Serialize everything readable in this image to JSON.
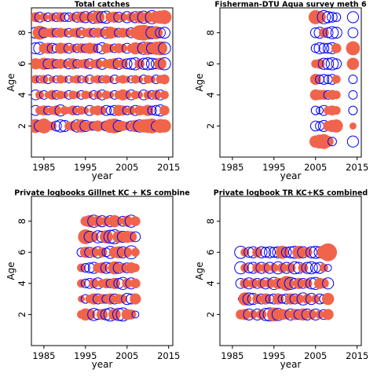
{
  "chart_data": [
    {
      "type": "scatter",
      "title": "Total catches",
      "xlabel": "year",
      "ylabel": "Age",
      "xlim": [
        1982,
        2016
      ],
      "ylim": [
        0,
        9.6
      ],
      "xticks": [
        1985,
        1995,
        2005,
        2015
      ],
      "yticks": [
        2,
        4,
        6,
        8
      ],
      "residual_colors": {
        "positive": "#f0644b",
        "negative": "#0000ff"
      },
      "years": [
        1983,
        1984,
        1985,
        1986,
        1987,
        1988,
        1989,
        1990,
        1991,
        1992,
        1993,
        1994,
        1995,
        1996,
        1997,
        1998,
        1999,
        2000,
        2001,
        2002,
        2003,
        2004,
        2005,
        2006,
        2007,
        2008,
        2009,
        2010,
        2011,
        2012,
        2013,
        2014
      ],
      "ages": [
        2,
        3,
        4,
        5,
        6,
        7,
        8,
        9
      ],
      "residuals": [
        [
          0.8,
          -0.5,
          0.9,
          0.4,
          0.3,
          -0.4,
          -0.6,
          -0.5,
          0.3,
          0.4,
          -0.6,
          0.7,
          -0.5,
          0.4,
          -0.3,
          0.5,
          0.3,
          -0.4,
          0.8,
          0.9,
          -0.5,
          0.4,
          0.3,
          -0.4,
          0.6,
          -0.6,
          0.7,
          0.8,
          0.9,
          -0.4,
          0.8,
          0.7
        ],
        [
          -0.4,
          0.3,
          0.4,
          -0.3,
          0.3,
          0.4,
          -0.5,
          0.3,
          0.2,
          0.4,
          -0.3,
          0.3,
          0.2,
          -0.4,
          0.3,
          0.4,
          0.3,
          -0.4,
          -0.3,
          -0.4,
          0.5,
          0.4,
          -0.3,
          0.3,
          -0.4,
          0.4,
          0.3,
          0.5,
          -0.3,
          -0.4,
          -0.5,
          0.4
        ],
        [
          -0.4,
          0.3,
          -0.3,
          0.2,
          0.4,
          -0.3,
          0.3,
          0.2,
          -0.3,
          0.3,
          0.2,
          -0.3,
          0.3,
          0.2,
          -0.3,
          0.3,
          -0.4,
          0.3,
          0.2,
          -0.3,
          0.3,
          0.5,
          0.3,
          -0.4,
          0.3,
          0.2,
          -0.4,
          0.3,
          -0.3,
          0.4,
          -0.4,
          0.3
        ],
        [
          0.3,
          -0.2,
          0.3,
          -0.3,
          0.2,
          -0.2,
          0.3,
          0.2,
          -0.2,
          0.2,
          0.3,
          -0.2,
          0.2,
          -0.3,
          0.2,
          0.3,
          -0.2,
          0.3,
          0.2,
          -0.3,
          0.2,
          0.3,
          0.2,
          -0.2,
          0.3,
          0.2,
          -0.3,
          0.3,
          0.2,
          -0.3,
          0.3,
          0.4
        ],
        [
          0.5,
          0.4,
          0.6,
          -0.4,
          0.5,
          -0.3,
          0.4,
          0.3,
          -0.4,
          0.5,
          -0.3,
          0.3,
          0.4,
          -0.4,
          0.3,
          0.4,
          -0.5,
          0.3,
          0.4,
          0.5,
          -0.5,
          0.4,
          -0.4,
          -0.5,
          -0.6,
          0.4,
          -0.5,
          -0.6,
          -0.5,
          -0.4,
          0.6,
          -0.6
        ],
        [
          -0.5,
          -0.6,
          0.4,
          0.5,
          -0.4,
          -0.3,
          0.5,
          0.4,
          -0.4,
          0.3,
          -0.3,
          0.4,
          -0.3,
          0.5,
          0.4,
          -0.3,
          -0.5,
          0.4,
          0.3,
          -0.3,
          0.4,
          0.3,
          -0.4,
          0.3,
          0.6,
          0.5,
          -0.6,
          0.7,
          -0.5,
          0.7,
          0.8,
          -0.6
        ],
        [
          -0.5,
          0.8,
          -0.4,
          0.3,
          0.4,
          -0.3,
          0.4,
          0.3,
          -0.3,
          0.3,
          0.4,
          -0.4,
          0.3,
          0.4,
          -0.3,
          0.4,
          0.3,
          -0.5,
          0.6,
          0.4,
          -0.3,
          0.4,
          0.3,
          -0.4,
          0.5,
          0.9,
          1.0,
          0.8,
          -0.6,
          0.7,
          -0.4,
          -0.5
        ],
        [
          0.4,
          -0.4,
          0.3,
          -0.3,
          0.3,
          -0.3,
          0.4,
          -0.3,
          -0.3,
          0.3,
          -0.4,
          0.5,
          -0.5,
          0.4,
          -0.6,
          0.7,
          -0.5,
          -0.6,
          0.4,
          0.5,
          -0.4,
          0.3,
          -0.5,
          0.4,
          -0.5,
          0.6,
          -0.6,
          0.5,
          -0.7,
          0.6,
          0.7,
          0.8
        ]
      ]
    },
    {
      "type": "scatter",
      "title": "Fisherman-DTU Aqua survey meth 6",
      "xlabel": "year",
      "ylabel": "Age",
      "xlim": [
        1982,
        2016
      ],
      "ylim": [
        0,
        9.6
      ],
      "xticks": [
        1985,
        1995,
        2005,
        2015
      ],
      "yticks": [
        2,
        4,
        6,
        8
      ],
      "residual_colors": {
        "positive": "#f0644b",
        "negative": "#0000ff"
      },
      "years": [
        2005,
        2006,
        2007,
        2008,
        2009,
        2010,
        2011,
        2014
      ],
      "ages": [
        1,
        2,
        3,
        4,
        5,
        6,
        7,
        8,
        9
      ],
      "residuals": [
        [
          0.6,
          0.8,
          0.9,
          0.5,
          -0.3,
          null,
          null,
          -0.5
        ],
        [
          -0.4,
          -0.3,
          -0.5,
          0.4,
          0.6,
          0.7,
          null,
          0.2
        ],
        [
          -0.3,
          -0.2,
          -0.4,
          0.3,
          0.4,
          0.3,
          null,
          -0.3
        ],
        [
          0.5,
          0.4,
          0.4,
          -0.3,
          0.4,
          0.3,
          null,
          -0.3
        ],
        [
          0.5,
          -0.3,
          -0.4,
          -0.3,
          -0.4,
          0.3,
          null,
          -0.3
        ],
        [
          0.3,
          0.4,
          -0.5,
          -0.5,
          -0.6,
          -0.4,
          null,
          0.6
        ],
        [
          -0.3,
          -0.5,
          -0.4,
          -0.4,
          -0.5,
          0.4,
          null,
          0.8
        ],
        [
          -0.4,
          -0.5,
          0.4,
          -0.4,
          -0.6,
          -0.5,
          null,
          -0.4
        ],
        [
          0.8,
          0.6,
          -0.7,
          -0.5,
          -0.4,
          -0.3,
          null,
          -0.5
        ]
      ]
    },
    {
      "type": "scatter",
      "title": "Private logbooks Gillnet KC + KS combine",
      "xlabel": "year",
      "ylabel": "Age",
      "xlim": [
        1982,
        2016
      ],
      "ylim": [
        0,
        9.6
      ],
      "xticks": [
        1985,
        1995,
        2005,
        2015
      ],
      "yticks": [
        2,
        4,
        6,
        8
      ],
      "residual_colors": {
        "positive": "#f0644b",
        "negative": "#0000ff"
      },
      "years": [
        1994,
        1995,
        1996,
        1997,
        1998,
        1999,
        2000,
        2001,
        2002,
        2003,
        2004,
        2005,
        2006,
        2007
      ],
      "ages": [
        2,
        3,
        4,
        5,
        6,
        7,
        8
      ],
      "residuals": [
        [
          0.3,
          0.6,
          0.5,
          -0.6,
          -0.4,
          0.5,
          -0.5,
          -0.7,
          0.6,
          -0.6,
          -0.7,
          0.5,
          0.4,
          -0.2
        ],
        [
          0.2,
          -0.3,
          0.3,
          0.5,
          -0.4,
          0.4,
          -0.3,
          0.5,
          -0.4,
          0.4,
          0.3,
          -0.5,
          -0.4,
          0.5
        ],
        [
          0.3,
          -0.3,
          -0.4,
          0.4,
          -0.5,
          0.3,
          0.4,
          -0.3,
          0.5,
          -0.4,
          -0.6,
          0.4,
          -0.5,
          0.4
        ],
        [
          0.3,
          -0.3,
          -0.4,
          -0.5,
          0.4,
          0.5,
          -0.5,
          -0.4,
          0.7,
          -0.5,
          0.4,
          -0.4,
          0.5,
          0.3
        ],
        [
          -0.3,
          0.5,
          -0.4,
          0.4,
          -0.5,
          0.4,
          -0.3,
          -0.6,
          0.5,
          0.6,
          -0.5,
          0.4,
          -0.7,
          0.3
        ],
        [
          null,
          0.9,
          -0.5,
          0.4,
          -0.6,
          -0.5,
          0.7,
          -0.7,
          -0.8,
          0.6,
          -0.5,
          0.6,
          0.5,
          -0.4
        ],
        [
          null,
          0.4,
          0.6,
          -0.6,
          0.5,
          -0.5,
          0.4,
          -0.5,
          0.6,
          0.3,
          -0.4,
          0.5,
          -0.6,
          0.4
        ]
      ]
    },
    {
      "type": "scatter",
      "title": "Private logbook TR KC+KS combined",
      "xlabel": "year",
      "ylabel": "Age",
      "xlim": [
        1982,
        2016
      ],
      "ylim": [
        0,
        9.6
      ],
      "xticks": [
        1985,
        1995,
        2005,
        2015
      ],
      "yticks": [
        2,
        4,
        6,
        8
      ],
      "residual_colors": {
        "positive": "#f0644b",
        "negative": "#0000ff"
      },
      "years": [
        1987,
        1988,
        1989,
        1990,
        1991,
        1992,
        1993,
        1994,
        1995,
        1996,
        1997,
        1998,
        1999,
        2000,
        2001,
        2002,
        2003,
        2004,
        2005,
        2006,
        2007,
        2008
      ],
      "ages": [
        2,
        3,
        4,
        5,
        6
      ],
      "residuals": [
        [
          0.4,
          0.5,
          -0.5,
          0.3,
          -0.5,
          0.4,
          -0.6,
          -0.7,
          0.8,
          -0.6,
          0.5,
          0.4,
          -0.5,
          0.5,
          -0.4,
          0.6,
          -0.5,
          0.4,
          -0.5,
          0.3,
          -0.4,
          0.5
        ],
        [
          -0.1,
          0.7,
          -0.6,
          -0.5,
          0.4,
          -0.4,
          0.5,
          -0.3,
          -0.4,
          0.5,
          -0.3,
          -0.4,
          0.5,
          -0.4,
          0.4,
          -0.6,
          0.4,
          -0.5,
          0.3,
          -0.4,
          -0.3,
          0.6
        ],
        [
          -0.4,
          0.4,
          -0.5,
          0.4,
          -0.4,
          0.4,
          -0.5,
          0.4,
          -0.6,
          0.5,
          -0.4,
          0.9,
          -0.6,
          -0.4,
          0.5,
          -0.4,
          0.4,
          -0.5,
          -0.6,
          0.5,
          0.4,
          -0.5
        ],
        [
          -0.6,
          0.3,
          -0.4,
          -0.5,
          0.4,
          -0.5,
          0.4,
          -0.5,
          0.3,
          -0.6,
          0.4,
          -0.5,
          0.4,
          -0.6,
          -0.5,
          0.4,
          -0.5,
          -0.6,
          -0.4,
          -0.5,
          0.3,
          -0.2
        ],
        [
          -0.6,
          0.3,
          -0.4,
          -0.5,
          0.4,
          -0.5,
          -0.4,
          -0.5,
          -0.4,
          -0.5,
          0.7,
          -0.4,
          -0.5,
          -0.6,
          0.7,
          -0.5,
          0.4,
          -0.5,
          -0.6,
          -0.5,
          0.8,
          1.3
        ]
      ]
    }
  ]
}
